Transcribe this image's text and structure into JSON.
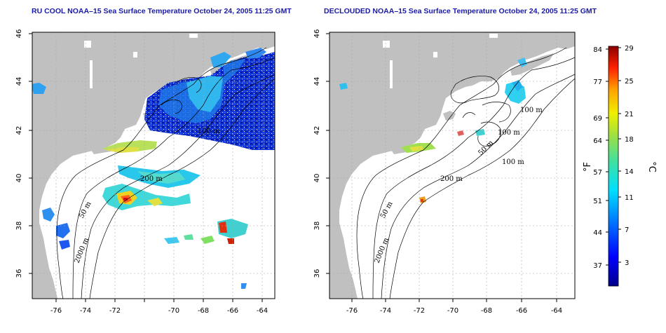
{
  "left_title": "RU COOL NOAA–15 Sea Surface Temperature October 24, 2005 11:25 GMT",
  "right_title": "DECLOUDED NOAA–15 Sea Surface Temperature October 24, 2005 11:25 GMT",
  "x_ticks": [
    "-76",
    "-74",
    "-72",
    "-70",
    "-68",
    "-66",
    "-64"
  ],
  "y_ticks": [
    "46",
    "44",
    "42",
    "40",
    "38",
    "36"
  ],
  "contour_labels_left": [
    "200 m",
    "50 m",
    "2000 m",
    "100 m"
  ],
  "contour_labels_right": [
    "200 m",
    "50 m",
    "2000 m",
    "100 m",
    "100 m",
    "100 m",
    "50 m"
  ],
  "colorbar": {
    "f_ticks": [
      "84",
      "77",
      "69",
      "64",
      "57",
      "51",
      "44",
      "37"
    ],
    "c_ticks": [
      "29",
      "25",
      "21",
      "18",
      "14",
      "11",
      "7",
      "3"
    ],
    "f_unit": "°F",
    "c_unit": "°C"
  },
  "colors": {
    "land": "#c0c0c0",
    "ocean": "#ffffff",
    "title": "#1a1aa6"
  }
}
